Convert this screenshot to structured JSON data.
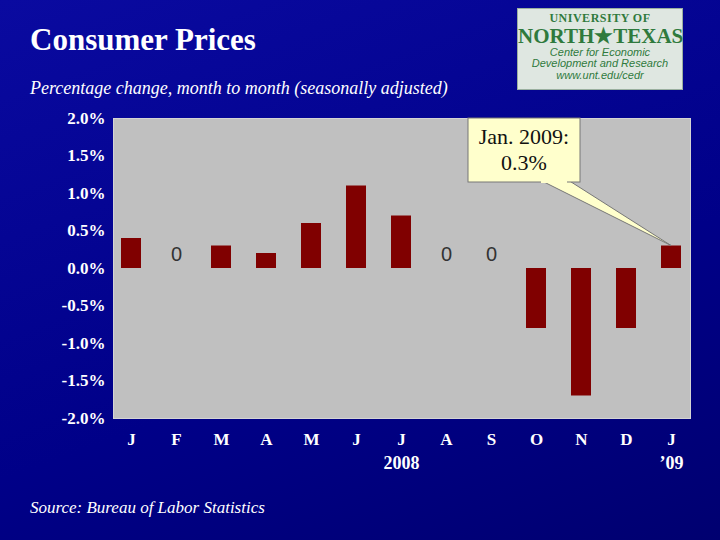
{
  "chart_data": {
    "type": "bar",
    "title": "Consumer Prices",
    "subtitle": "Percentage change, month to month (seasonally adjusted)",
    "categories": [
      "J",
      "F",
      "M",
      "A",
      "M",
      "J",
      "J",
      "A",
      "S",
      "O",
      "N",
      "D",
      "J"
    ],
    "values": [
      0.4,
      0,
      0.3,
      0.2,
      0.6,
      1.1,
      0.7,
      0,
      0,
      -0.8,
      -1.7,
      -0.8,
      0.3
    ],
    "color": "#800000",
    "ylim": [
      -2,
      2
    ],
    "yticks": [
      {
        "value": -2,
        "label": "-2.0%"
      },
      {
        "value": -1.5,
        "label": "-1.5%"
      },
      {
        "value": -1,
        "label": "-1.0%"
      },
      {
        "value": -0.5,
        "label": "-0.5%"
      },
      {
        "value": 0,
        "label": "0.0%"
      },
      {
        "value": 0.5,
        "label": "0.5%"
      },
      {
        "value": 1,
        "label": "1.0%"
      },
      {
        "value": 1.5,
        "label": "1.5%"
      },
      {
        "value": 2,
        "label": "2.0%"
      }
    ],
    "grid": false,
    "annotations": [
      {
        "text": "0",
        "x": 1,
        "y": 0
      },
      {
        "text": "0",
        "x": 7,
        "y": 0
      },
      {
        "text": "0",
        "x": 8,
        "y": 0
      }
    ],
    "x_group_labels": [
      {
        "text": "2008",
        "x": 6
      },
      {
        "text": "’09",
        "x": 12
      }
    ],
    "callout": {
      "lines": [
        "Jan. 2009:",
        "0.3%"
      ],
      "x": 12,
      "y": 0.3
    },
    "source": "Source:  Bureau of Labor Statistics"
  },
  "logo": [
    "UNIVERSITY OF",
    "NORTH★TEXAS",
    "Center for Economic",
    "Development and Research",
    "www.unt.edu/cedr"
  ]
}
